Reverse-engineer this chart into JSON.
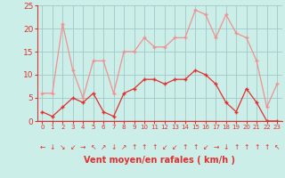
{
  "x": [
    0,
    1,
    2,
    3,
    4,
    5,
    6,
    7,
    8,
    9,
    10,
    11,
    12,
    13,
    14,
    15,
    16,
    17,
    18,
    19,
    20,
    21,
    22,
    23
  ],
  "y_mean": [
    2,
    1,
    3,
    5,
    4,
    6,
    2,
    1,
    6,
    7,
    9,
    9,
    8,
    9,
    9,
    11,
    10,
    8,
    4,
    2,
    7,
    4,
    0,
    0
  ],
  "y_gust": [
    6,
    6,
    21,
    11,
    5,
    13,
    13,
    6,
    15,
    15,
    18,
    16,
    16,
    18,
    18,
    24,
    23,
    18,
    23,
    19,
    18,
    13,
    3,
    8
  ],
  "color_mean": "#e03030",
  "color_gust": "#f09090",
  "bg_color": "#cceee8",
  "grid_color": "#a0c8c8",
  "xlabel": "Vent moyen/en rafales ( km/h )",
  "xlabel_color": "#e03030",
  "tick_color": "#e03030",
  "ylim": [
    0,
    25
  ],
  "yticks": [
    0,
    5,
    10,
    15,
    20,
    25
  ],
  "arrows": [
    "←",
    "↓",
    "↘",
    "↙",
    "→",
    "↖",
    "↗",
    "↓",
    "↗",
    "↑",
    "↑",
    "↑",
    "↙",
    "↙",
    "↑",
    "↑",
    "↙",
    "→",
    "↓",
    "↑",
    "↑",
    "↑",
    "↑",
    "↖"
  ]
}
